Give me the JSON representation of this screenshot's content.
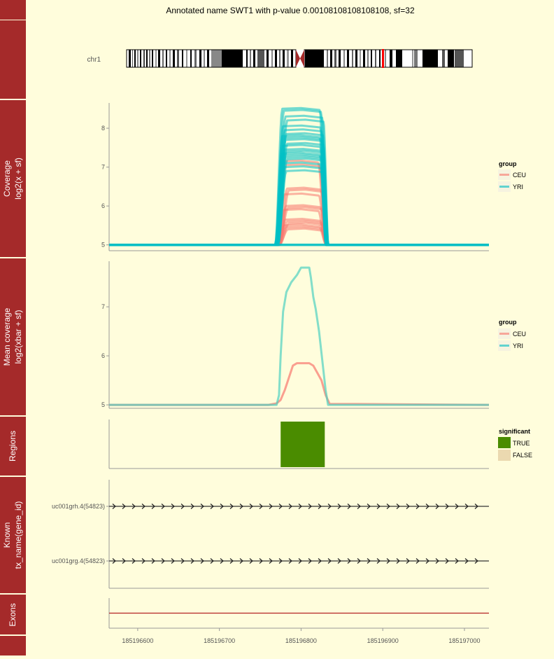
{
  "title": "Annotated name SWT1 with p-value 0.00108108108108108, sf=32",
  "colors": {
    "background": "#FFFDDC",
    "panel_strip": "#A52A2A",
    "ceu": "#F8766D",
    "yri": "#00BFC4",
    "yri_mean": "#4FD0C0",
    "significant_true": "#4A8C00",
    "significant_false": "#EBD9B0",
    "exon_line": "#B22222",
    "ideogram_marker": "#FF0000"
  },
  "panels": {
    "ideogram": {
      "label": "chr1"
    },
    "coverage": {
      "strip_label_1": "Coverage",
      "strip_label_2": "log2(x + sf)"
    },
    "mean": {
      "strip_label_1": "Mean coverage",
      "strip_label_2": "log2(xbar + sf)"
    },
    "regions": {
      "strip_label": "Regions"
    },
    "known": {
      "strip_label_1": "Known",
      "strip_label_2": "tx_name(gene_id)"
    },
    "exons": {
      "strip_label": "Exons"
    }
  },
  "legends": {
    "group": {
      "title": "group",
      "items": [
        "CEU",
        "YRI"
      ]
    },
    "group_mean": {
      "title": "group",
      "items": [
        "CEU",
        "YRI"
      ]
    },
    "significant": {
      "title": "significant",
      "items": [
        "TRUE",
        "FALSE"
      ]
    }
  },
  "chart_data": [
    {
      "type": "line",
      "panel": "coverage",
      "ylabel": "Coverage log2(x + sf)",
      "xlim": [
        185196565,
        185197030
      ],
      "ylim": [
        4.85,
        8.65
      ],
      "yticks": [
        5,
        6,
        7,
        8
      ],
      "series": [
        {
          "name": "YRI",
          "count": 21,
          "baseline": 5,
          "start": 185196770,
          "rise_end": 185196780,
          "fall_start": 185196825,
          "end": 185196832,
          "peaks": [
            8.5,
            8.45,
            8.3,
            8.2,
            8.05,
            7.95,
            7.85,
            7.8,
            7.75,
            7.7,
            7.6,
            7.55,
            7.45,
            7.4,
            7.35,
            7.3,
            7.25,
            7.2,
            7.1,
            7.0,
            6.9
          ]
        },
        {
          "name": "CEU",
          "count": 14,
          "baseline": 5,
          "start": 185196772,
          "rise_end": 185196782,
          "fall_start": 185196823,
          "end": 185196832,
          "peaks": [
            7.15,
            7.05,
            6.45,
            6.4,
            6.3,
            6.0,
            5.95,
            5.9,
            5.65,
            5.6,
            5.55,
            5.5,
            5.45,
            5.4
          ]
        }
      ]
    },
    {
      "type": "line",
      "panel": "mean",
      "ylabel": "Mean coverage log2(xbar + sf)",
      "xlim": [
        185196565,
        185197030
      ],
      "ylim": [
        4.93,
        7.93
      ],
      "yticks": [
        5,
        6,
        7
      ],
      "series": [
        {
          "name": "YRI",
          "x": [
            185196565,
            185196770,
            185196773,
            185196775,
            185196778,
            185196782,
            185196788,
            185196795,
            185196800,
            185196805,
            185196810,
            185196812,
            185196815,
            185196818,
            185196822,
            185196826,
            185196830,
            185196833,
            185196840,
            185197030
          ],
          "y": [
            5.0,
            5.0,
            5.2,
            6.0,
            6.9,
            7.3,
            7.5,
            7.65,
            7.8,
            7.8,
            7.8,
            7.6,
            7.2,
            6.95,
            6.5,
            5.9,
            5.3,
            5.0,
            5.0,
            5.0
          ]
        },
        {
          "name": "CEU",
          "x": [
            185196565,
            185196760,
            185196770,
            185196775,
            185196780,
            185196785,
            185196790,
            185196795,
            185196800,
            185196810,
            185196815,
            185196820,
            185196825,
            185196830,
            185196835,
            185197030
          ],
          "y": [
            5.0,
            5.0,
            5.03,
            5.1,
            5.3,
            5.55,
            5.8,
            5.85,
            5.85,
            5.85,
            5.8,
            5.65,
            5.5,
            5.2,
            5.02,
            5.0
          ]
        }
      ]
    },
    {
      "type": "bar",
      "panel": "regions",
      "series": [
        {
          "name": "TRUE",
          "start": 185196775,
          "end": 185196829
        }
      ]
    },
    {
      "type": "line",
      "panel": "known",
      "categories": [
        "uc001grh.4(54823)",
        "uc001grg.4(54823)"
      ],
      "direction": "+",
      "start": 185196565,
      "end": 185197030
    },
    {
      "type": "line",
      "panel": "exons",
      "start": 185196565,
      "end": 185197030
    },
    {
      "type": "line",
      "panel": "x-axis",
      "xticks": [
        185196600,
        185196700,
        185196800,
        185196900,
        185197000
      ],
      "xtick_labels": [
        "185196600",
        "185196700",
        "185196800",
        "185196900",
        "185197000"
      ]
    }
  ]
}
